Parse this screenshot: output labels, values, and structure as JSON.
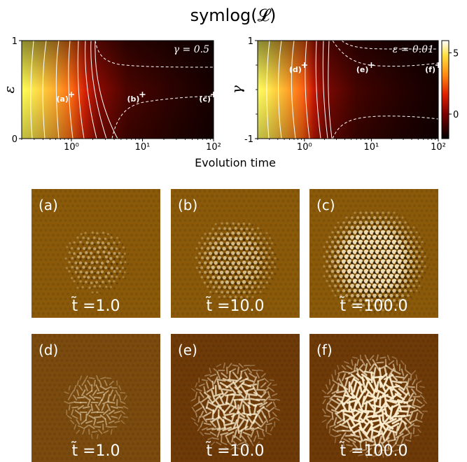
{
  "figure": {
    "title": "symlog(𝓛)",
    "xlabel": "Evolution time"
  },
  "chart_data": [
    {
      "type": "heatmap",
      "panel": "left",
      "ylabel": "ε",
      "param_label": "γ = 0.5",
      "x_scale": "log",
      "xlim": [
        0.2,
        100
      ],
      "ylim": [
        0,
        1
      ],
      "x_ticks": [
        {
          "value": 1,
          "label": "10⁰"
        },
        {
          "value": 10,
          "label": "10¹"
        },
        {
          "value": 100,
          "label": "10²"
        }
      ],
      "y_ticks": [
        {
          "value": 0,
          "label": "0"
        },
        {
          "value": 1,
          "label": "1"
        }
      ],
      "markers": [
        {
          "label": "(a)",
          "t": 1.0,
          "y": 0.45
        },
        {
          "label": "(b)",
          "t": 10.0,
          "y": 0.45
        },
        {
          "label": "(c)",
          "t": 100.0,
          "y": 0.45
        }
      ],
      "colormap": "hot",
      "grid": false
    },
    {
      "type": "heatmap",
      "panel": "right",
      "ylabel": "γ",
      "param_label": "ε = 0.01",
      "x_scale": "log",
      "xlim": [
        0.2,
        100
      ],
      "ylim": [
        -1,
        1
      ],
      "x_ticks": [
        {
          "value": 1,
          "label": "10⁰"
        },
        {
          "value": 10,
          "label": "10¹"
        },
        {
          "value": 100,
          "label": "10²"
        }
      ],
      "y_ticks": [
        {
          "value": -1,
          "label": "-1"
        },
        {
          "value": 1,
          "label": "1"
        }
      ],
      "markers": [
        {
          "label": "(d)",
          "t": 1.0,
          "y": 0.5
        },
        {
          "label": "(e)",
          "t": 10.0,
          "y": 0.5
        },
        {
          "label": "(f)",
          "t": 100.0,
          "y": 0.5
        }
      ],
      "colorbar": {
        "ticks": [
          {
            "value": 5,
            "label": "5"
          },
          {
            "value": 0,
            "label": "0"
          }
        ],
        "range": [
          -2,
          6
        ]
      },
      "colormap": "hot",
      "grid": false
    }
  ],
  "snapshots": [
    {
      "label": "(a)",
      "time_text": "t̃ =1.0",
      "stage": 0.35,
      "style": "hex",
      "bg": "#8a5a0a"
    },
    {
      "label": "(b)",
      "time_text": "t̃ =10.0",
      "stage": 0.65,
      "style": "hex",
      "bg": "#8a5a0a"
    },
    {
      "label": "(c)",
      "time_text": "t̃ =100.0",
      "stage": 1.0,
      "style": "hex",
      "bg": "#8a5a0a"
    },
    {
      "label": "(d)",
      "time_text": "t̃ =1.0",
      "stage": 0.35,
      "style": "maze",
      "bg": "#7a4a0e"
    },
    {
      "label": "(e)",
      "time_text": "t̃ =10.0",
      "stage": 0.75,
      "style": "maze",
      "bg": "#6e3a08"
    },
    {
      "label": "(f)",
      "time_text": "t̃ =100.0",
      "stage": 1.0,
      "style": "maze",
      "bg": "#6e3a08"
    }
  ]
}
